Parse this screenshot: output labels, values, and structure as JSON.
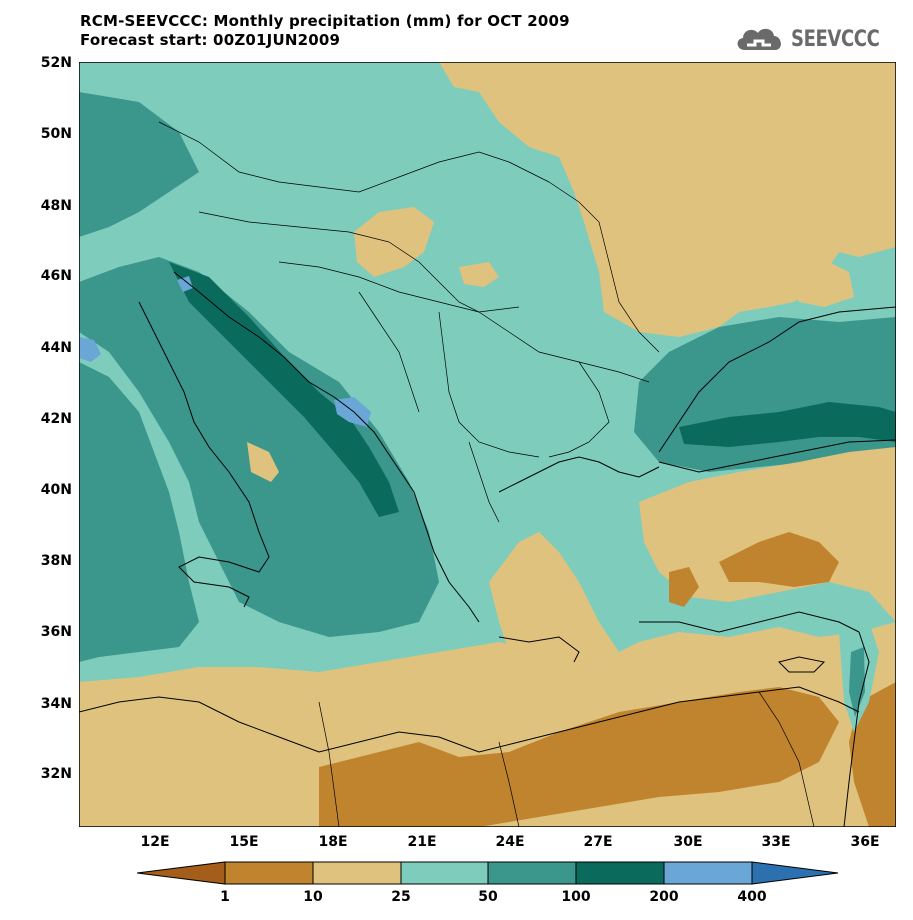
{
  "header": {
    "title": "RCM-SEEVCCC: Monthly precipitation (mm) for OCT 2009",
    "subtitle": "Forecast start: 00Z01JUN2009"
  },
  "logo": {
    "text": "SEEVCCC",
    "icon": "cloud-icon"
  },
  "axes": {
    "lat_labels": [
      "52N",
      "50N",
      "48N",
      "46N",
      "44N",
      "42N",
      "40N",
      "38N",
      "36N",
      "34N",
      "32N"
    ],
    "lon_labels": [
      "12E",
      "15E",
      "18E",
      "21E",
      "24E",
      "27E",
      "30E",
      "33E",
      "36E"
    ]
  },
  "legend": {
    "labels": [
      "1",
      "10",
      "25",
      "50",
      "100",
      "200",
      "400"
    ],
    "colors": [
      "#a45e1a",
      "#c0842e",
      "#e0c27f",
      "#7dccbc",
      "#3b968c",
      "#0a6b5d",
      "#6aa6d6",
      "#2d70b0"
    ]
  }
}
